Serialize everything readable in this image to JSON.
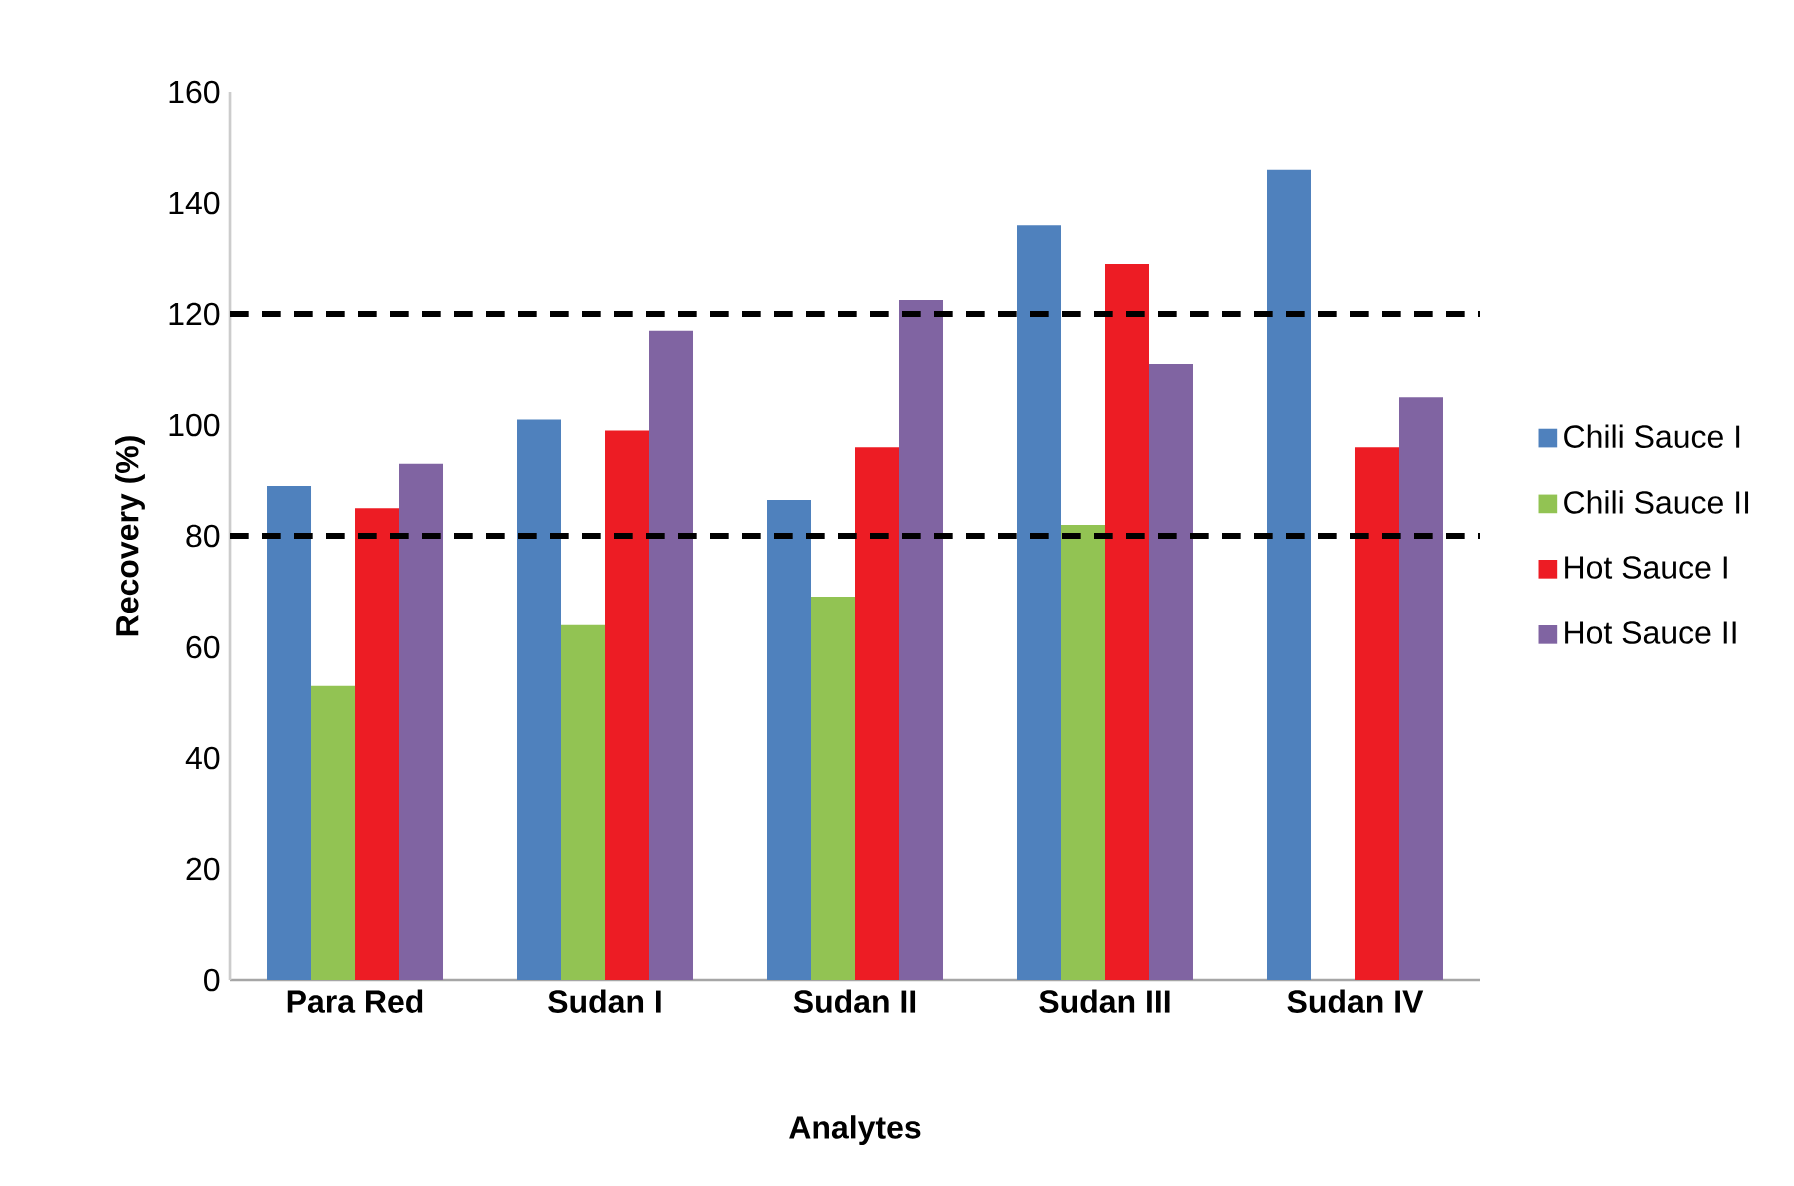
{
  "chart_data": {
    "type": "bar",
    "xlabel": "Analytes",
    "ylabel": "Recovery (%)",
    "categories": [
      "Para Red",
      "Sudan I",
      "Sudan II",
      "Sudan III",
      "Sudan IV"
    ],
    "series": [
      {
        "name": "Chili Sauce I",
        "color": "#4f81bd",
        "values": [
          89,
          101,
          86.5,
          136,
          146
        ]
      },
      {
        "name": "Chili Sauce II",
        "color": "#92c353",
        "values": [
          53,
          64,
          69,
          82,
          null
        ]
      },
      {
        "name": "Hot Sauce I",
        "color": "#ed1c24",
        "values": [
          85,
          99,
          96,
          129,
          96
        ]
      },
      {
        "name": "Hot Sauce II",
        "color": "#8064a2",
        "values": [
          93,
          117,
          122.5,
          111,
          105
        ]
      }
    ],
    "ylim": [
      0,
      160
    ],
    "yticks": [
      0,
      20,
      40,
      60,
      80,
      100,
      120,
      140,
      160
    ],
    "ref_lines": [
      {
        "axis": "y",
        "value": 120,
        "color": "#000000",
        "line_style": "dashed"
      },
      {
        "axis": "y",
        "value": 80,
        "color": "#000000",
        "line_style": "dashed"
      }
    ],
    "grid": false,
    "legend": "right"
  }
}
